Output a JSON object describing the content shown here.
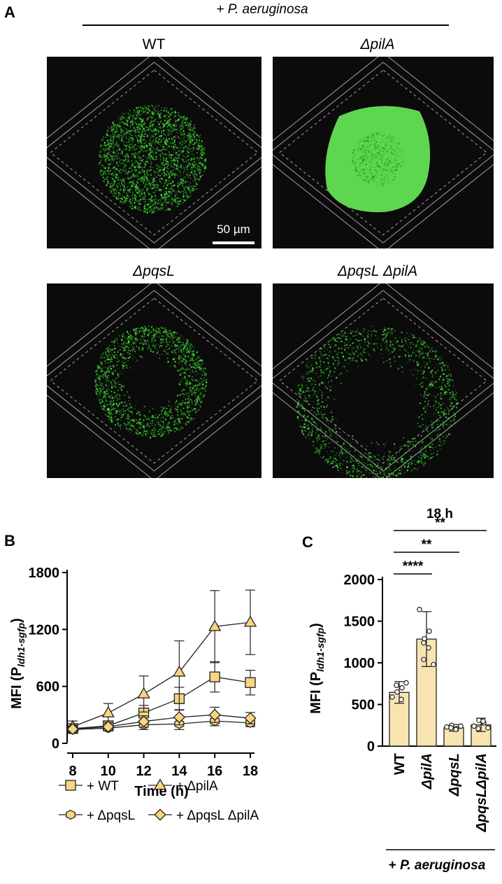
{
  "panel_a": {
    "letter": "A",
    "condition": "+ P. aeruginosa",
    "panels": [
      {
        "label": "WT",
        "italic": false
      },
      {
        "label": "ΔpilA",
        "italic": true
      },
      {
        "label": "ΔpqsL",
        "italic": true
      },
      {
        "label": "ΔpqsL ΔpilA",
        "italic": true
      }
    ],
    "scale_bar": "50 µm"
  },
  "chart_data": [
    {
      "panel": "B",
      "type": "line",
      "xlabel": "Time (h)",
      "ylabel": "MFI (P",
      "ylabel_sub": "ldh1-sgfp",
      "ylabel_close": ")",
      "x": [
        8,
        10,
        12,
        14,
        16,
        18
      ],
      "xticks": [
        "8",
        "10",
        "12",
        "14",
        "16",
        "18"
      ],
      "yticks": [
        "0",
        "600",
        "1200",
        "1800"
      ],
      "ylim": [
        0,
        1800
      ],
      "xlim": [
        8,
        18
      ],
      "series": [
        {
          "name": "+ WT",
          "marker": "square",
          "values": [
            155,
            185,
            320,
            470,
            700,
            640
          ],
          "err": [
            40,
            50,
            80,
            120,
            160,
            130
          ]
        },
        {
          "name": "+ ΔpilA",
          "marker": "triangle",
          "values": [
            175,
            320,
            520,
            750,
            1230,
            1275
          ],
          "err": [
            60,
            100,
            190,
            330,
            380,
            340
          ]
        },
        {
          "name": "+ ΔpqsL",
          "marker": "hexagon",
          "values": [
            145,
            160,
            195,
            205,
            235,
            215
          ],
          "err": [
            30,
            30,
            50,
            60,
            50,
            40
          ]
        },
        {
          "name": "+ ΔpqsL ΔpilA",
          "marker": "diamond",
          "values": [
            150,
            175,
            230,
            275,
            300,
            265
          ],
          "err": [
            35,
            40,
            60,
            80,
            80,
            60
          ]
        }
      ],
      "colors": {
        "fill": "#f8d57e",
        "edge": "#222222"
      }
    },
    {
      "panel": "C",
      "type": "bar",
      "title": "18 h",
      "ylabel": "MFI (P",
      "ylabel_sub": "ldh1-sgfp",
      "ylabel_close": ")",
      "categories": [
        "WT",
        "ΔpilA",
        "ΔpqsL",
        "ΔpqsLΔpilA"
      ],
      "values": [
        645,
        1285,
        220,
        255
      ],
      "err": [
        130,
        330,
        40,
        80
      ],
      "points": [
        [
          590,
          650,
          700,
          730,
          560,
          760
        ],
        [
          1640,
          1290,
          1380,
          1240,
          1180,
          980,
          1040
        ],
        [
          230,
          250,
          210,
          220,
          200,
          240
        ],
        [
          240,
          310,
          280,
          210,
          300,
          220
        ]
      ],
      "ylim": [
        0,
        2000
      ],
      "yticks": [
        "0",
        "500",
        "1000",
        "1500",
        "2000"
      ],
      "significance": [
        {
          "from": 0,
          "to": 1,
          "label": "****"
        },
        {
          "from": 0,
          "to": 2,
          "label": "**"
        },
        {
          "from": 0,
          "to": 3,
          "label": "**"
        }
      ],
      "group_label": "+ P. aeruginosa",
      "colors": {
        "fill": "#f8e4b0",
        "edge": "#222222"
      }
    }
  ]
}
